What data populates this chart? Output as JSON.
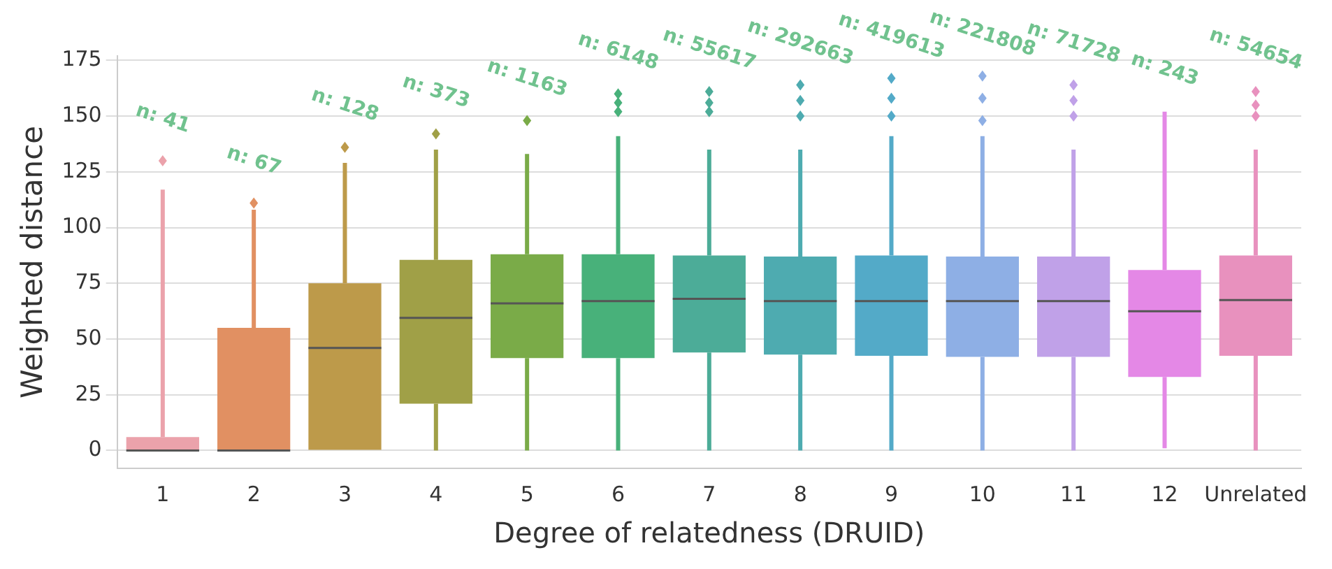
{
  "chart_data": {
    "type": "box",
    "xlabel": "Degree of relatedness (DRUID)",
    "ylabel": "Weighted distance",
    "categories": [
      "1",
      "2",
      "3",
      "4",
      "5",
      "6",
      "7",
      "8",
      "9",
      "10",
      "11",
      "12",
      "Unrelated"
    ],
    "colors": [
      "#eba2ab",
      "#e19062",
      "#bd9a4a",
      "#a0a047",
      "#7aab48",
      "#48b17a",
      "#4cac98",
      "#4eabb0",
      "#53aac8",
      "#8eafe5",
      "#c0a1e8",
      "#e488e6",
      "#e891be"
    ],
    "boxes": [
      {
        "low": 0,
        "q1": 0,
        "median": 0,
        "q3": 6,
        "high": 117,
        "outliers": [
          130
        ]
      },
      {
        "low": 0,
        "q1": 0,
        "median": 0,
        "q3": 55,
        "high": 108,
        "outliers": [
          111
        ]
      },
      {
        "low": 0,
        "q1": 0,
        "median": 46,
        "q3": 75,
        "high": 129,
        "outliers": [
          136
        ]
      },
      {
        "low": 0,
        "q1": 21,
        "median": 59.5,
        "q3": 85.5,
        "high": 135,
        "outliers": [
          142
        ]
      },
      {
        "low": 0,
        "q1": 41.5,
        "median": 66,
        "q3": 88,
        "high": 133,
        "outliers": [
          148
        ]
      },
      {
        "low": 0,
        "q1": 41.5,
        "median": 67,
        "q3": 88,
        "high": 141,
        "outliers": [
          152,
          156,
          160
        ]
      },
      {
        "low": 0,
        "q1": 44,
        "median": 68,
        "q3": 87.5,
        "high": 135,
        "outliers": [
          152,
          156,
          161
        ]
      },
      {
        "low": 0,
        "q1": 43,
        "median": 67,
        "q3": 87,
        "high": 135,
        "outliers": [
          150,
          157,
          164
        ]
      },
      {
        "low": 0,
        "q1": 42.5,
        "median": 67,
        "q3": 87.5,
        "high": 141,
        "outliers": [
          150,
          158,
          167
        ]
      },
      {
        "low": 0,
        "q1": 42,
        "median": 67,
        "q3": 87,
        "high": 141,
        "outliers": [
          148,
          158,
          168
        ]
      },
      {
        "low": 0,
        "q1": 42,
        "median": 67,
        "q3": 87,
        "high": 135,
        "outliers": [
          150,
          157,
          164
        ]
      },
      {
        "low": 1,
        "q1": 33,
        "median": 62.5,
        "q3": 81,
        "high": 152
      },
      {
        "low": 0,
        "q1": 42.5,
        "median": 67.5,
        "q3": 87.5,
        "high": 135,
        "outliers": [
          150,
          155,
          161
        ]
      }
    ],
    "ylim": [
      -8,
      177
    ],
    "yticks": [
      0,
      25,
      50,
      75,
      100,
      125,
      150,
      175
    ],
    "grid": "y",
    "legend": false,
    "annotations": [
      "n: 41",
      "n: 67",
      "n: 128",
      "n: 373",
      "n: 1163",
      "n: 6148",
      "n: 55617",
      "n: 292663",
      "n: 419613",
      "n: 221808",
      "n: 71728",
      "n: 243",
      "n: 54654"
    ]
  }
}
